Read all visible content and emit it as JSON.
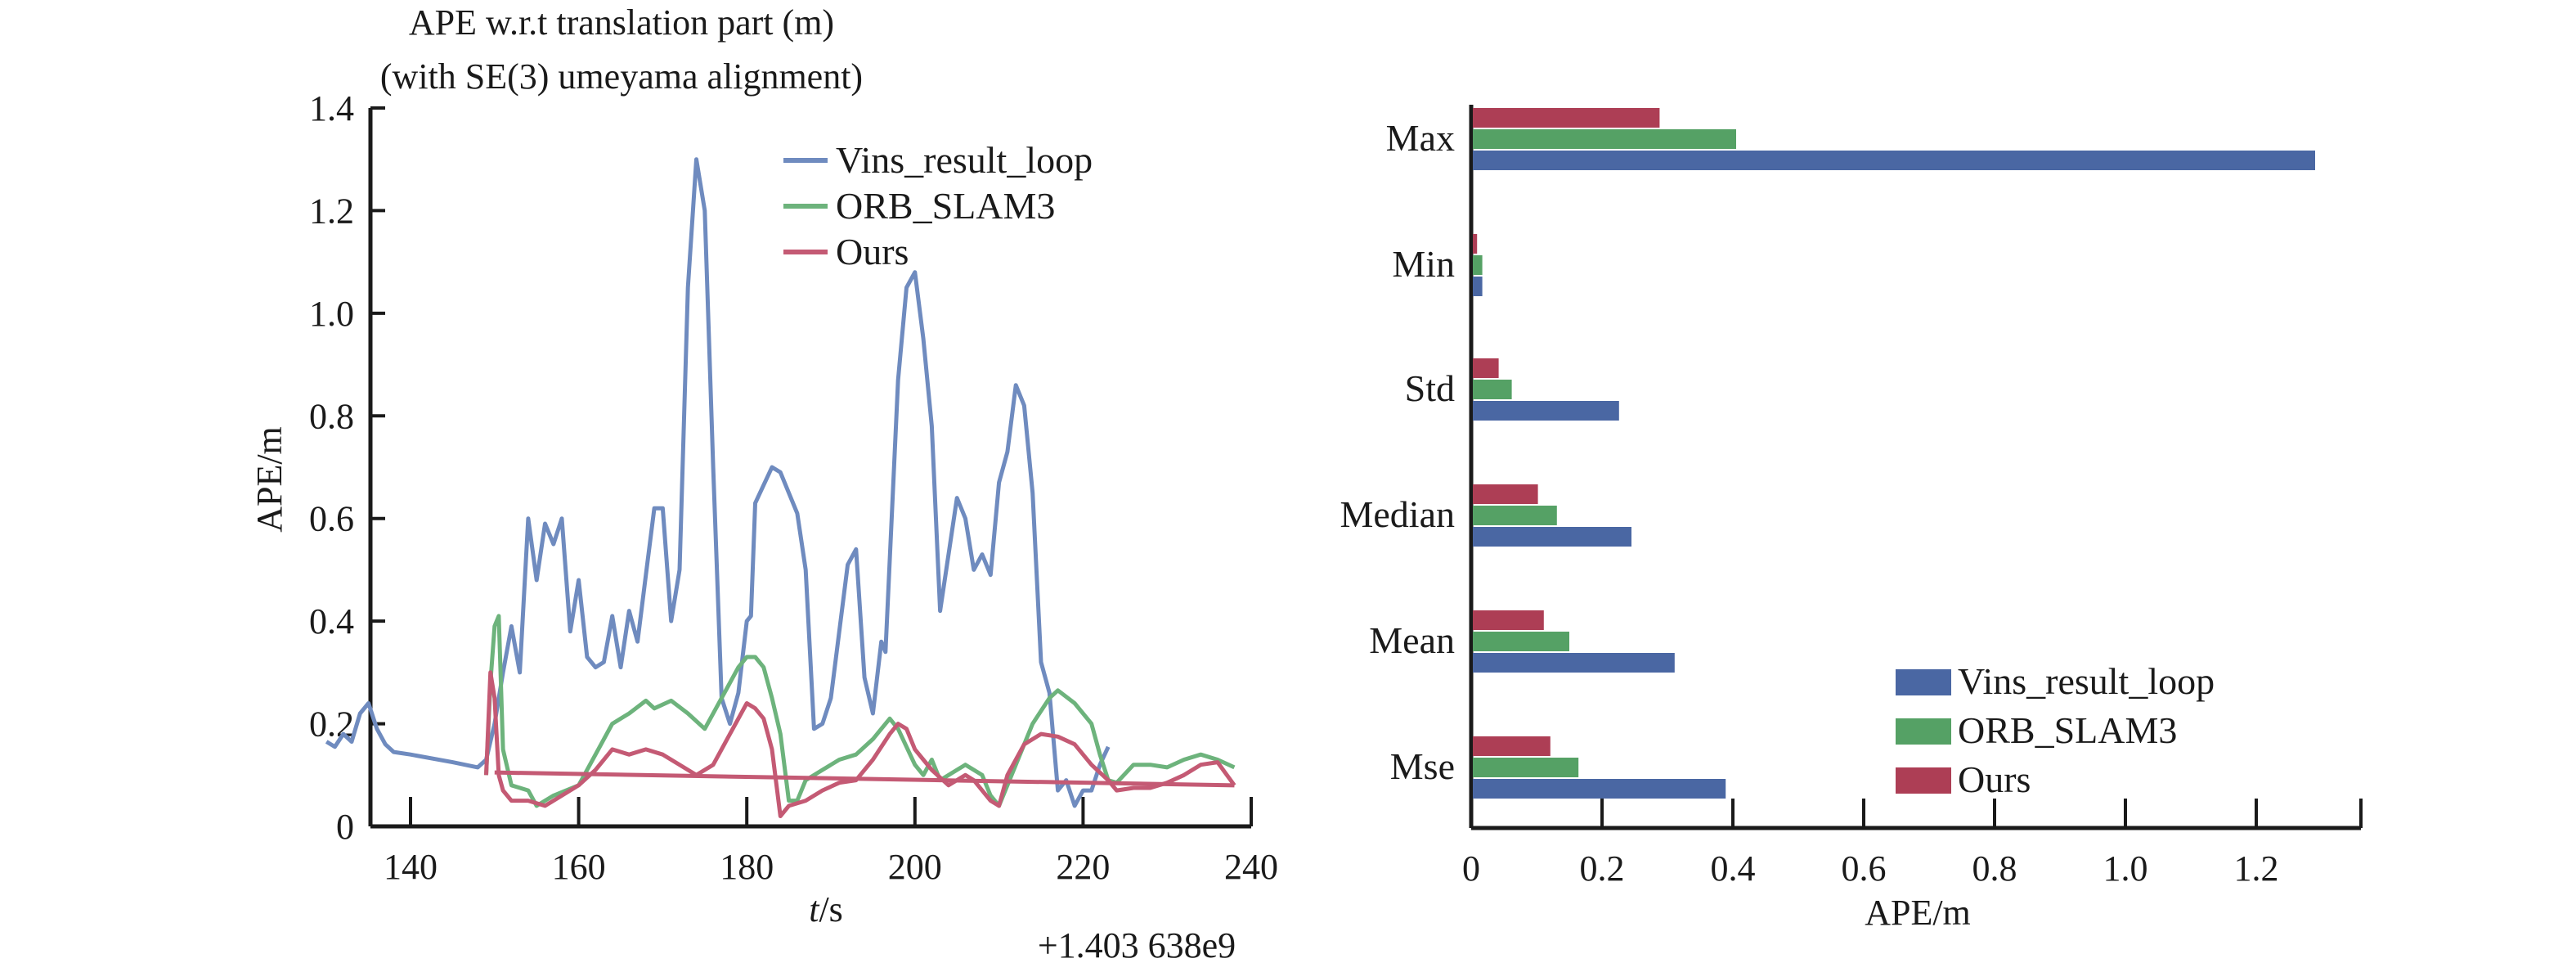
{
  "chart_data": [
    {
      "type": "line",
      "title": "APE w.r.t translation part (m)",
      "subtitle": "(with SE(3) umeyama alignment)",
      "xlabel_italic": "t",
      "xlabel_rest": "/s",
      "ylabel": "APE/m",
      "x_offset_label": "+1.403 638e9",
      "xlim": [
        127,
        240
      ],
      "ylim": [
        0,
        1.4
      ],
      "xticks": [
        140,
        160,
        180,
        200,
        220,
        240
      ],
      "yticks": [
        0,
        0.2,
        0.4,
        0.6,
        0.8,
        1.0,
        1.2,
        1.4
      ],
      "ytick_labels": [
        "0",
        "0.2",
        "0.4",
        "0.6",
        "0.8",
        "1.0",
        "1.2",
        "1.4"
      ],
      "legend_position": "top-right",
      "series": [
        {
          "name": "Vins_result_loop",
          "color": "#6f8bbf",
          "points": [
            [
              130,
              0.165
            ],
            [
              131,
              0.155
            ],
            [
              132,
              0.18
            ],
            [
              133,
              0.165
            ],
            [
              134,
              0.22
            ],
            [
              135,
              0.24
            ],
            [
              136,
              0.19
            ],
            [
              137,
              0.16
            ],
            [
              138,
              0.145
            ],
            [
              140,
              0.14
            ],
            [
              145,
              0.125
            ],
            [
              148,
              0.115
            ],
            [
              149,
              0.13
            ],
            [
              150,
              0.2
            ],
            [
              151,
              0.3
            ],
            [
              152,
              0.39
            ],
            [
              153,
              0.3
            ],
            [
              154,
              0.6
            ],
            [
              155,
              0.48
            ],
            [
              156,
              0.59
            ],
            [
              157,
              0.55
            ],
            [
              158,
              0.6
            ],
            [
              159,
              0.38
            ],
            [
              160,
              0.48
            ],
            [
              161,
              0.33
            ],
            [
              162,
              0.31
            ],
            [
              163,
              0.32
            ],
            [
              164,
              0.41
            ],
            [
              165,
              0.31
            ],
            [
              166,
              0.42
            ],
            [
              167,
              0.36
            ],
            [
              168,
              0.49
            ],
            [
              169,
              0.62
            ],
            [
              170,
              0.62
            ],
            [
              171,
              0.4
            ],
            [
              172,
              0.5
            ],
            [
              173,
              1.05
            ],
            [
              174,
              1.3
            ],
            [
              175,
              1.2
            ],
            [
              176,
              0.7
            ],
            [
              177,
              0.25
            ],
            [
              178,
              0.2
            ],
            [
              179,
              0.26
            ],
            [
              180,
              0.4
            ],
            [
              180.5,
              0.41
            ],
            [
              181,
              0.63
            ],
            [
              183,
              0.7
            ],
            [
              184,
              0.69
            ],
            [
              185,
              0.65
            ],
            [
              186,
              0.61
            ],
            [
              187,
              0.5
            ],
            [
              188,
              0.19
            ],
            [
              189,
              0.2
            ],
            [
              190,
              0.25
            ],
            [
              191,
              0.38
            ],
            [
              192,
              0.51
            ],
            [
              193,
              0.54
            ],
            [
              194,
              0.29
            ],
            [
              195,
              0.22
            ],
            [
              196,
              0.36
            ],
            [
              196.5,
              0.34
            ],
            [
              198,
              0.87
            ],
            [
              199,
              1.05
            ],
            [
              200,
              1.08
            ],
            [
              201,
              0.95
            ],
            [
              202,
              0.78
            ],
            [
              203,
              0.42
            ],
            [
              204,
              0.53
            ],
            [
              205,
              0.64
            ],
            [
              206,
              0.6
            ],
            [
              207,
              0.5
            ],
            [
              208,
              0.53
            ],
            [
              209,
              0.49
            ],
            [
              210,
              0.67
            ],
            [
              211,
              0.73
            ],
            [
              212,
              0.86
            ],
            [
              213,
              0.82
            ],
            [
              214,
              0.65
            ],
            [
              215,
              0.32
            ],
            [
              216,
              0.26
            ],
            [
              217,
              0.07
            ],
            [
              218,
              0.09
            ],
            [
              219,
              0.04
            ],
            [
              220,
              0.07
            ],
            [
              221,
              0.07
            ],
            [
              222,
              0.12
            ],
            [
              223,
              0.155
            ]
          ]
        },
        {
          "name": "ORB_SLAM3",
          "color": "#6db37c",
          "points": [
            [
              149,
              0.1
            ],
            [
              149.5,
              0.28
            ],
            [
              150,
              0.39
            ],
            [
              150.5,
              0.41
            ],
            [
              151,
              0.15
            ],
            [
              152,
              0.08
            ],
            [
              154,
              0.07
            ],
            [
              155,
              0.04
            ],
            [
              157,
              0.06
            ],
            [
              160,
              0.08
            ],
            [
              162,
              0.14
            ],
            [
              164,
              0.2
            ],
            [
              166,
              0.22
            ],
            [
              168,
              0.245
            ],
            [
              169,
              0.23
            ],
            [
              171,
              0.245
            ],
            [
              173,
              0.22
            ],
            [
              175,
              0.19
            ],
            [
              177,
              0.25
            ],
            [
              179,
              0.31
            ],
            [
              180,
              0.33
            ],
            [
              181,
              0.33
            ],
            [
              182,
              0.31
            ],
            [
              183,
              0.25
            ],
            [
              184,
              0.18
            ],
            [
              185,
              0.05
            ],
            [
              186,
              0.05
            ],
            [
              187,
              0.09
            ],
            [
              189,
              0.11
            ],
            [
              191,
              0.13
            ],
            [
              193,
              0.14
            ],
            [
              195,
              0.17
            ],
            [
              196,
              0.19
            ],
            [
              197,
              0.21
            ],
            [
              198,
              0.19
            ],
            [
              200,
              0.12
            ],
            [
              201,
              0.1
            ],
            [
              202,
              0.13
            ],
            [
              203,
              0.09
            ],
            [
              205,
              0.11
            ],
            [
              206,
              0.12
            ],
            [
              207,
              0.11
            ],
            [
              208,
              0.1
            ],
            [
              209,
              0.06
            ],
            [
              210,
              0.04
            ],
            [
              212,
              0.12
            ],
            [
              214,
              0.2
            ],
            [
              216,
              0.25
            ],
            [
              217,
              0.265
            ],
            [
              219,
              0.24
            ],
            [
              221,
              0.2
            ],
            [
              222,
              0.14
            ],
            [
              223,
              0.09
            ],
            [
              224,
              0.085
            ],
            [
              226,
              0.12
            ],
            [
              228,
              0.12
            ],
            [
              230,
              0.115
            ],
            [
              232,
              0.13
            ],
            [
              234,
              0.14
            ],
            [
              236,
              0.13
            ],
            [
              238,
              0.115
            ]
          ]
        },
        {
          "name": "Ours",
          "color": "#c45a74",
          "points": [
            [
              149,
              0.1
            ],
            [
              149.5,
              0.3
            ],
            [
              150,
              0.25
            ],
            [
              150.5,
              0.1
            ],
            [
              151,
              0.07
            ],
            [
              152,
              0.05
            ],
            [
              154,
              0.05
            ],
            [
              156,
              0.04
            ],
            [
              158,
              0.06
            ],
            [
              160,
              0.08
            ],
            [
              162,
              0.11
            ],
            [
              164,
              0.15
            ],
            [
              166,
              0.14
            ],
            [
              168,
              0.15
            ],
            [
              170,
              0.14
            ],
            [
              172,
              0.12
            ],
            [
              174,
              0.1
            ],
            [
              176,
              0.12
            ],
            [
              178,
              0.18
            ],
            [
              180,
              0.24
            ],
            [
              181,
              0.23
            ],
            [
              182,
              0.21
            ],
            [
              183,
              0.15
            ],
            [
              184,
              0.02
            ],
            [
              185,
              0.04
            ],
            [
              187,
              0.05
            ],
            [
              189,
              0.07
            ],
            [
              191,
              0.085
            ],
            [
              193,
              0.09
            ],
            [
              195,
              0.13
            ],
            [
              197,
              0.18
            ],
            [
              198,
              0.2
            ],
            [
              199,
              0.19
            ],
            [
              200,
              0.15
            ],
            [
              201,
              0.13
            ],
            [
              202,
              0.11
            ],
            [
              204,
              0.08
            ],
            [
              206,
              0.1
            ],
            [
              207,
              0.09
            ],
            [
              208,
              0.07
            ],
            [
              209,
              0.05
            ],
            [
              210,
              0.04
            ],
            [
              211,
              0.1
            ],
            [
              213,
              0.16
            ],
            [
              215,
              0.18
            ],
            [
              217,
              0.175
            ],
            [
              219,
              0.16
            ],
            [
              221,
              0.12
            ],
            [
              223,
              0.09
            ],
            [
              224,
              0.07
            ],
            [
              226,
              0.075
            ],
            [
              228,
              0.075
            ],
            [
              230,
              0.085
            ],
            [
              232,
              0.1
            ],
            [
              234,
              0.12
            ],
            [
              236,
              0.125
            ],
            [
              238,
              0.08
            ]
          ],
          "baseline_segment": [
            [
              150,
              0.105
            ],
            [
              238,
              0.08
            ]
          ]
        }
      ]
    },
    {
      "type": "bar",
      "orientation": "horizontal",
      "categories": [
        "Max",
        "Min",
        "Std",
        "Median",
        "Mean",
        "Mse"
      ],
      "xlabel": "APE/m",
      "xlim": [
        0,
        1.36
      ],
      "xticks": [
        0,
        0.2,
        0.4,
        0.6,
        0.8,
        1.0,
        1.2
      ],
      "xtick_labels": [
        "0",
        "0.2",
        "0.4",
        "0.6",
        "0.8",
        "1.0",
        "1.2"
      ],
      "legend_position": "bottom-right",
      "series": [
        {
          "name": "Vins_result_loop",
          "color": "#4a67a3",
          "values": [
            1.29,
            0.017,
            0.226,
            0.245,
            0.311,
            0.389
          ]
        },
        {
          "name": "ORB_SLAM3",
          "color": "#55a165",
          "values": [
            0.405,
            0.017,
            0.062,
            0.131,
            0.15,
            0.164
          ]
        },
        {
          "name": "Ours",
          "color": "#ad3e55",
          "values": [
            0.288,
            0.009,
            0.042,
            0.102,
            0.111,
            0.121
          ]
        }
      ]
    }
  ]
}
